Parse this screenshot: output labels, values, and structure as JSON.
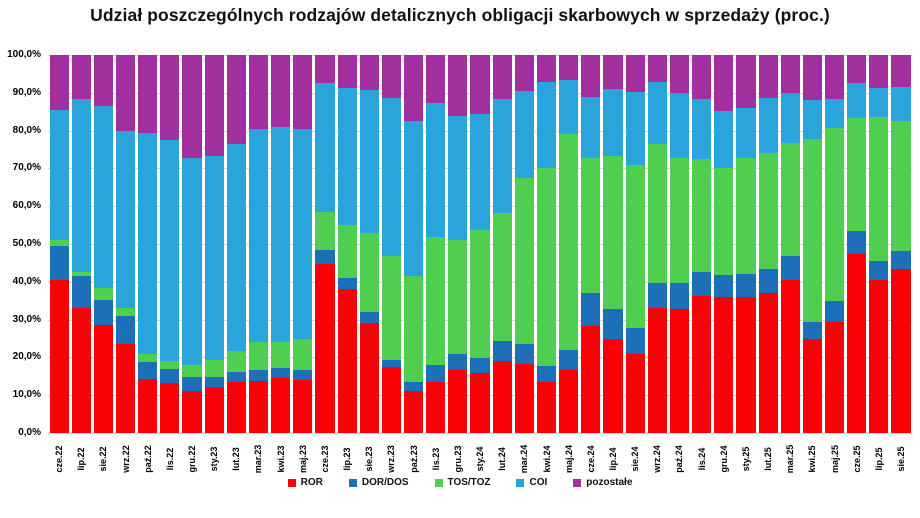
{
  "chart_data": {
    "type": "bar",
    "variant": "stacked-100",
    "title": "Udział poszczególnych rodzajów detalicznych obligacji skarbowych w sprzedaży (proc.)",
    "xlabel": "",
    "ylabel": "",
    "ylim": [
      0,
      100
    ],
    "y_tick_step": 10,
    "y_tick_labels": [
      "100,0%",
      "90,0%",
      "80,0%",
      "70,0%",
      "60,0%",
      "50,0%",
      "40,0%",
      "30,0%",
      "20,0%",
      "10,0%",
      "0,0%"
    ],
    "grid": "horizontal",
    "gridline_color": "#d9d9d9",
    "legend_position": "bottom",
    "categories": [
      "cze.22",
      "lip.22",
      "sie.22",
      "wrz.22",
      "paź.22",
      "lis.22",
      "gru.22",
      "sty.23",
      "lut.23",
      "mar.23",
      "kwi.23",
      "maj.23",
      "cze.23",
      "lip.23",
      "sie.23",
      "wrz.23",
      "paź.23",
      "lis.23",
      "gru.23",
      "sty.24",
      "lut.24",
      "mar.24",
      "kwi.24",
      "maj.24",
      "cze.24",
      "lip.24",
      "sie.24",
      "wrz.24",
      "paź.24",
      "lis.24",
      "gru.24",
      "sty.25",
      "lut.25",
      "mar.25",
      "kwi.25",
      "maj.25",
      "cze.25",
      "lip.25",
      "sie.25"
    ],
    "series": [
      {
        "name": "ROR",
        "color": "#f80305",
        "values": [
          40.5,
          33.0,
          28.5,
          23.6,
          14.4,
          13.1,
          11.2,
          12.3,
          13.6,
          13.8,
          14.6,
          14.0,
          44.6,
          38.0,
          29.2,
          17.5,
          11.2,
          13.6,
          16.7,
          16.0,
          19.0,
          18.3,
          13.6,
          16.8,
          28.3,
          25.0,
          20.9,
          33.0,
          32.7,
          36.2,
          35.9,
          36.1,
          37.1,
          40.4,
          24.8,
          29.5,
          47.4,
          40.5,
          43.3
        ]
      },
      {
        "name": "DOR/DOS",
        "color": "#1d6fb8",
        "values": [
          9.1,
          8.5,
          6.6,
          7.4,
          4.3,
          3.8,
          3.7,
          2.4,
          2.6,
          3.0,
          2.7,
          2.6,
          3.8,
          2.9,
          2.9,
          1.8,
          2.4,
          4.4,
          4.2,
          3.8,
          5.3,
          5.2,
          4.1,
          5.2,
          8.8,
          7.7,
          7.0,
          6.8,
          7.1,
          6.5,
          5.9,
          5.9,
          6.2,
          6.4,
          4.7,
          5.5,
          6.0,
          5.1,
          4.9
        ]
      },
      {
        "name": "TOS/TOZ",
        "color": "#4fce4f",
        "values": [
          1.4,
          1.0,
          3.2,
          2.0,
          2.2,
          2.1,
          3.1,
          4.6,
          5.6,
          7.3,
          6.8,
          8.4,
          10.2,
          14.1,
          20.9,
          27.6,
          27.9,
          33.9,
          30.2,
          33.9,
          34.0,
          43.9,
          52.3,
          57.0,
          35.6,
          40.6,
          43.0,
          36.6,
          33.0,
          29.7,
          28.2,
          30.7,
          30.9,
          29.8,
          48.2,
          45.6,
          30.0,
          38.1,
          34.4
        ]
      },
      {
        "name": "COI",
        "color": "#29a5dc",
        "values": [
          34.5,
          45.8,
          48.3,
          46.8,
          58.6,
          58.4,
          54.7,
          54.0,
          54.6,
          56.3,
          56.8,
          55.4,
          33.9,
          36.4,
          37.7,
          41.8,
          41.1,
          35.3,
          32.8,
          30.7,
          30.0,
          23.1,
          22.9,
          14.4,
          16.3,
          17.6,
          19.4,
          16.5,
          17.2,
          15.9,
          15.2,
          13.2,
          14.5,
          13.4,
          10.4,
          7.9,
          9.3,
          7.5,
          9.0
        ]
      },
      {
        "name": "pozostałe",
        "color": "#a12f9d",
        "values": [
          14.5,
          11.7,
          13.4,
          20.2,
          20.5,
          22.6,
          27.3,
          26.7,
          23.6,
          19.6,
          19.1,
          19.6,
          7.5,
          8.6,
          9.3,
          11.3,
          17.4,
          12.8,
          16.1,
          15.6,
          11.7,
          9.5,
          7.1,
          6.6,
          11.0,
          9.1,
          9.7,
          7.1,
          10.0,
          11.7,
          14.8,
          14.1,
          11.3,
          10.0,
          11.9,
          11.5,
          7.3,
          8.8,
          8.4
        ]
      }
    ]
  }
}
